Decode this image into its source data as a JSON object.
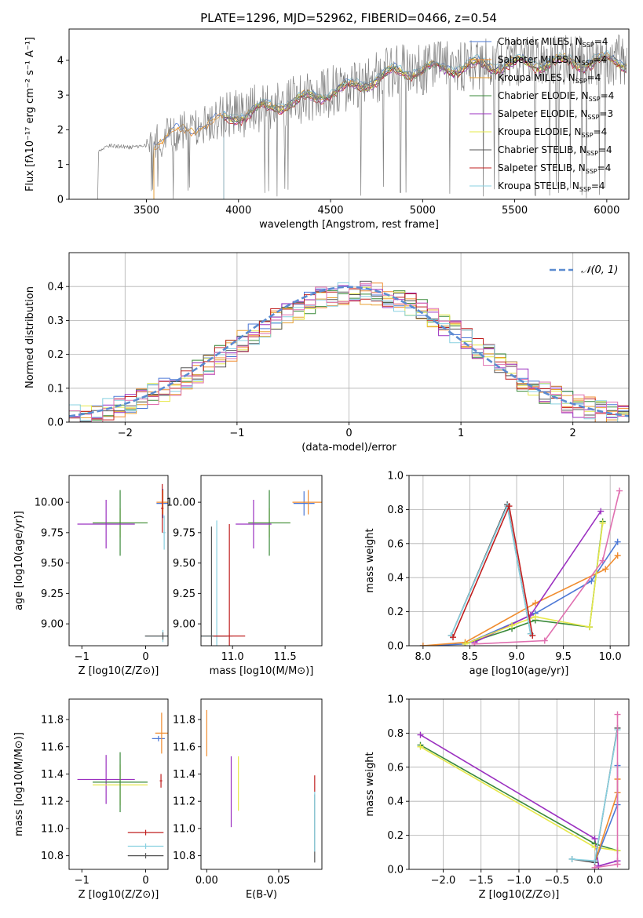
{
  "figure_title": "PLATE=1296, MJD=52962, FIBERID=0466, z=0.54",
  "series_colors": {
    "chabrier_miles": "#4c78d6",
    "salpeter_miles": "#f08c2e",
    "kroupa_miles": "#e8a030",
    "chabrier_elodie": "#3a8a3a",
    "salpeter_elodie": "#9b30c0",
    "kroupa_elodie": "#e6e84a",
    "chabrier_stelib": "#555555",
    "salpeter_stelib": "#c02020",
    "kroupa_stelib": "#88d0e0"
  },
  "chart_data": [
    {
      "id": "spectrum",
      "type": "line",
      "xlabel": "wavelength [Angstrom, rest frame]",
      "ylabel": "Flux [fλ10⁻¹⁷ erg cm⁻² s⁻¹ A⁻¹]",
      "xlim": [
        3080,
        6120
      ],
      "ylim": [
        0,
        4.9
      ],
      "xticks": [
        3500,
        4000,
        4500,
        5000,
        5500,
        6000
      ],
      "yticks": [
        0,
        1,
        2,
        3,
        4
      ],
      "legend_position": "top-right",
      "legend": [
        {
          "label": "Chabrier MILES, N_SSP=4",
          "color_key": "chabrier_miles"
        },
        {
          "label": "Salpeter MILES, N_SSP=4",
          "color_key": "salpeter_miles"
        },
        {
          "label": "Kroupa MILES, N_SSP=4",
          "color_key": "kroupa_miles"
        },
        {
          "label": "Chabrier ELODIE, N_SSP=4",
          "color_key": "chabrier_elodie"
        },
        {
          "label": "Salpeter ELODIE, N_SSP=3",
          "color_key": "salpeter_elodie"
        },
        {
          "label": "Kroupa ELODIE, N_SSP=4",
          "color_key": "kroupa_elodie"
        },
        {
          "label": "Chabrier STELIB, N_SSP=4",
          "color_key": "chabrier_stelib"
        },
        {
          "label": "Salpeter STELIB, N_SSP=4",
          "color_key": "salpeter_stelib"
        },
        {
          "label": "Kroupa STELIB, N_SSP=4",
          "color_key": "kroupa_stelib"
        }
      ],
      "continuum_anchors": [
        [
          3240,
          1.35
        ],
        [
          3300,
          1.55
        ],
        [
          3400,
          1.5
        ],
        [
          3500,
          1.55
        ],
        [
          3650,
          1.9
        ],
        [
          3900,
          2.3
        ],
        [
          4100,
          2.6
        ],
        [
          4300,
          2.85
        ],
        [
          4500,
          3.1
        ],
        [
          4700,
          3.4
        ],
        [
          4850,
          3.7
        ],
        [
          5000,
          3.75
        ],
        [
          5200,
          3.85
        ],
        [
          5400,
          3.9
        ],
        [
          5600,
          3.95
        ],
        [
          5800,
          3.98
        ],
        [
          6000,
          4.0
        ],
        [
          6100,
          4.0
        ]
      ],
      "model_starts": {
        "miles": 3540,
        "elodie": 3920,
        "stelib": 3920
      }
    },
    {
      "id": "residuals",
      "type": "histogram",
      "xlabel": "(data-model)/error",
      "ylabel": "Normed distribution",
      "xlim": [
        -2.5,
        2.5
      ],
      "ylim": [
        0,
        0.5
      ],
      "xticks": [
        -2,
        -1,
        0,
        1,
        2
      ],
      "yticks": [
        0.0,
        0.1,
        0.2,
        0.3,
        0.4
      ],
      "bin_width": 0.1,
      "grid": true,
      "legend_position": "top-right",
      "reference_curve": {
        "label": "𝒩(0, 1)",
        "mean": 0,
        "sigma": 1,
        "color": "#5b8bd0"
      }
    },
    {
      "id": "age_vs_Z",
      "type": "errorbar",
      "xlabel": "Z [log10(Z/Z⊙)]",
      "ylabel": "age  [log10(age/yr)]",
      "xlim": [
        -1.2,
        0.35
      ],
      "ylim": [
        8.82,
        10.22
      ],
      "xticks": [
        -1,
        0
      ],
      "yticks": [
        9.0,
        9.25,
        9.5,
        9.75,
        10.0
      ],
      "points": [
        {
          "color_key": "chabrier_miles",
          "x": 0.27,
          "y": 9.99,
          "xerr": 0.1,
          "yerr": 0.12
        },
        {
          "color_key": "salpeter_miles",
          "x": 0.27,
          "y": 10.0,
          "xerr": 0.1,
          "yerr": 0.1
        },
        {
          "color_key": "kroupa_elodie",
          "x": -0.4,
          "y": 9.83,
          "xerr": 0.43,
          "yerr": 0.12
        },
        {
          "color_key": "chabrier_elodie",
          "x": -0.4,
          "y": 9.83,
          "xerr": 0.43,
          "yerr": 0.27
        },
        {
          "color_key": "salpeter_elodie",
          "x": -0.62,
          "y": 9.82,
          "xerr": 0.45,
          "yerr": 0.2
        },
        {
          "color_key": "kroupa_stelib",
          "x": 0.27,
          "y": 8.9,
          "xerr": 0.28,
          "yerr": 0.05
        },
        {
          "color_key": "chabrier_stelib",
          "x": 0.27,
          "y": 8.9,
          "xerr": 0.28,
          "yerr": 0.03
        },
        {
          "color_key": "salpeter_stelib",
          "x": 0.26,
          "y": 9.95,
          "xerr": 0.02,
          "yerr": 0.2
        },
        {
          "color_key": "kroupa_stelib",
          "x": 0.29,
          "y": 9.75,
          "xerr": 0.02,
          "yerr": 0.14
        }
      ]
    },
    {
      "id": "age_vs_mass",
      "type": "errorbar",
      "xlabel": "mass [log10(M/M⊙)]",
      "ylabel": "",
      "xlim": [
        10.7,
        11.85
      ],
      "ylim": [
        8.82,
        10.22
      ],
      "xticks": [
        11.0,
        11.5
      ],
      "yticks": [
        9.0,
        9.25,
        9.5,
        9.75,
        10.0
      ],
      "points": [
        {
          "color_key": "chabrier_miles",
          "x": 11.68,
          "y": 9.99,
          "xerr": 0.1,
          "yerr": 0.1
        },
        {
          "color_key": "salpeter_miles",
          "x": 11.72,
          "y": 10.0,
          "xerr": 0.15,
          "yerr": 0.1
        },
        {
          "color_key": "kroupa_elodie",
          "x": 11.35,
          "y": 9.83,
          "xerr": 0.2,
          "yerr": 0.12
        },
        {
          "color_key": "chabrier_elodie",
          "x": 11.35,
          "y": 9.83,
          "xerr": 0.2,
          "yerr": 0.27
        },
        {
          "color_key": "salpeter_elodie",
          "x": 11.2,
          "y": 9.82,
          "xerr": 0.17,
          "yerr": 0.2
        },
        {
          "color_key": "kroupa_stelib",
          "x": 10.85,
          "y": 8.9,
          "xerr": 0.15,
          "yerr": 0.95
        },
        {
          "color_key": "chabrier_stelib",
          "x": 10.8,
          "y": 8.9,
          "xerr": 0.15,
          "yerr": 0.9
        },
        {
          "color_key": "salpeter_stelib",
          "x": 10.97,
          "y": 8.9,
          "xerr": 0.15,
          "yerr": 0.92
        }
      ]
    },
    {
      "id": "mass_weight_vs_age",
      "type": "line",
      "xlabel": "age  [log10(age/yr)]",
      "ylabel": "mass weight",
      "xlim": [
        7.85,
        10.2
      ],
      "ylim": [
        0,
        1
      ],
      "xticks": [
        8.0,
        8.5,
        9.0,
        9.5,
        10.0
      ],
      "yticks": [
        0.0,
        0.2,
        0.4,
        0.6,
        0.8,
        1.0
      ],
      "grid": true,
      "series": [
        {
          "color_key": "chabrier_miles",
          "x": [
            8.0,
            8.45,
            9.2,
            9.8,
            10.08
          ],
          "y": [
            0.0,
            0.01,
            0.19,
            0.38,
            0.61
          ]
        },
        {
          "color_key": "salpeter_miles",
          "x": [
            8.0,
            8.45,
            9.2,
            9.95,
            10.08
          ],
          "y": [
            0.0,
            0.02,
            0.25,
            0.45,
            0.53
          ]
        },
        {
          "color_key": "chabrier_elodie",
          "x": [
            8.45,
            8.95,
            9.2,
            9.78,
            9.92
          ],
          "y": [
            0.01,
            0.1,
            0.15,
            0.11,
            0.73
          ]
        },
        {
          "color_key": "salpeter_elodie",
          "x": [
            8.55,
            9.15,
            9.9
          ],
          "y": [
            0.02,
            0.18,
            0.79
          ]
        },
        {
          "color_key": "kroupa_elodie",
          "x": [
            8.45,
            8.95,
            9.2,
            9.78,
            9.92
          ],
          "y": [
            0.01,
            0.12,
            0.17,
            0.11,
            0.72
          ]
        },
        {
          "color_key": "chabrier_stelib",
          "x": [
            8.3,
            8.9,
            9.15
          ],
          "y": [
            0.06,
            0.83,
            0.07
          ]
        },
        {
          "color_key": "kroupa_stelib",
          "x": [
            8.3,
            8.9,
            9.15
          ],
          "y": [
            0.06,
            0.82,
            0.07
          ]
        },
        {
          "color_key": "salpeter_stelib",
          "x": [
            8.32,
            8.92,
            9.17
          ],
          "y": [
            0.05,
            0.82,
            0.06
          ]
        },
        {
          "color_key": "pink",
          "x": [
            8.55,
            9.3,
            9.92,
            10.1
          ],
          "y": [
            0.01,
            0.03,
            0.5,
            0.91
          ]
        }
      ]
    },
    {
      "id": "mass_vs_Z",
      "type": "errorbar",
      "xlabel": "Z [log10(Z/Z⊙)]",
      "ylabel": "mass [log10(M/M⊙)]",
      "xlim": [
        -1.2,
        0.35
      ],
      "ylim": [
        10.7,
        11.95
      ],
      "xticks": [
        -1,
        0
      ],
      "yticks": [
        10.8,
        11.0,
        11.2,
        11.4,
        11.6,
        11.8
      ],
      "points": [
        {
          "color_key": "chabrier_miles",
          "x": 0.2,
          "y": 11.66,
          "xerr": 0.1,
          "yerr": 0.02
        },
        {
          "color_key": "salpeter_miles",
          "x": 0.25,
          "y": 11.7,
          "xerr": 0.1,
          "yerr": 0.15
        },
        {
          "color_key": "salpeter_elodie",
          "x": -0.62,
          "y": 11.36,
          "xerr": 0.45,
          "yerr": 0.18
        },
        {
          "color_key": "kroupa_elodie",
          "x": -0.4,
          "y": 11.32,
          "xerr": 0.43,
          "yerr": 0.15
        },
        {
          "color_key": "chabrier_elodie",
          "x": -0.4,
          "y": 11.34,
          "xerr": 0.43,
          "yerr": 0.22
        },
        {
          "color_key": "salpeter_stelib",
          "x": 0.0,
          "y": 10.97,
          "xerr": 0.28,
          "yerr": 0.02
        },
        {
          "color_key": "kroupa_stelib",
          "x": 0.0,
          "y": 10.87,
          "xerr": 0.28,
          "yerr": 0.02
        },
        {
          "color_key": "chabrier_stelib",
          "x": 0.0,
          "y": 10.8,
          "xerr": 0.28,
          "yerr": 0.02
        },
        {
          "color_key": "salpeter_stelib",
          "x": 0.24,
          "y": 11.35,
          "xerr": 0.02,
          "yerr": 0.05
        }
      ]
    },
    {
      "id": "mass_vs_EBV",
      "type": "errorbar",
      "xlabel": "E(B-V)",
      "ylabel": "",
      "xlim": [
        -0.004,
        0.08
      ],
      "ylim": [
        10.7,
        11.95
      ],
      "xticks": [
        0.0,
        0.05
      ],
      "xtick_labels": [
        "0.00",
        "0.05"
      ],
      "yticks": [
        10.8,
        11.0,
        11.2,
        11.4,
        11.6,
        11.8
      ],
      "points": [
        {
          "color_key": "salpeter_miles",
          "x": 0.0,
          "y": 11.7,
          "xerr": 0.0,
          "yerr": 0.17
        },
        {
          "color_key": "salpeter_elodie",
          "x": 0.017,
          "y": 11.27,
          "xerr": 0.0,
          "yerr": 0.26
        },
        {
          "color_key": "kroupa_elodie",
          "x": 0.022,
          "y": 11.33,
          "xerr": 0.0,
          "yerr": 0.2
        },
        {
          "color_key": "salpeter_stelib",
          "x": 0.075,
          "y": 11.33,
          "xerr": 0.0,
          "yerr": 0.06
        },
        {
          "color_key": "chabrier_stelib",
          "x": 0.075,
          "y": 11.0,
          "xerr": 0.0,
          "yerr": 0.25
        },
        {
          "color_key": "kroupa_stelib",
          "x": 0.075,
          "y": 11.05,
          "xerr": 0.0,
          "yerr": 0.22
        }
      ]
    },
    {
      "id": "mass_weight_vs_Z",
      "type": "line",
      "xlabel": "Z [log10(Z/Z⊙)]",
      "ylabel": "mass weight",
      "xlim": [
        -2.45,
        0.45
      ],
      "ylim": [
        0,
        1
      ],
      "xticks": [
        -2.0,
        -1.5,
        -1.0,
        -0.5,
        0.0
      ],
      "yticks": [
        0.0,
        0.2,
        0.4,
        0.6,
        0.8,
        1.0
      ],
      "grid": true,
      "series": [
        {
          "color_key": "salpeter_elodie",
          "x": [
            -2.3,
            0.0,
            0.05,
            0.3
          ],
          "y": [
            0.79,
            0.18,
            0.02,
            0.05
          ]
        },
        {
          "color_key": "chabrier_elodie",
          "x": [
            -2.3,
            0.0,
            0.3
          ],
          "y": [
            0.73,
            0.15,
            0.11
          ]
        },
        {
          "color_key": "kroupa_elodie",
          "x": [
            -2.3,
            0.0,
            0.3
          ],
          "y": [
            0.72,
            0.13,
            0.11
          ]
        },
        {
          "color_key": "chabrier_miles",
          "x": [
            0.0,
            0.3,
            0.3,
            0.3
          ],
          "y": [
            0.04,
            0.38,
            0.45,
            0.61
          ]
        },
        {
          "color_key": "salpeter_miles",
          "x": [
            0.0,
            0.3,
            0.3
          ],
          "y": [
            0.04,
            0.45,
            0.53
          ]
        },
        {
          "color_key": "chabrier_stelib",
          "x": [
            -0.3,
            0.0,
            0.3
          ],
          "y": [
            0.06,
            0.04,
            0.83
          ]
        },
        {
          "color_key": "kroupa_stelib",
          "x": [
            -0.3,
            0.0,
            0.3
          ],
          "y": [
            0.06,
            0.05,
            0.82
          ]
        },
        {
          "color_key": "pink",
          "x": [
            0.0,
            0.3,
            0.3
          ],
          "y": [
            0.01,
            0.03,
            0.91
          ]
        }
      ]
    }
  ]
}
